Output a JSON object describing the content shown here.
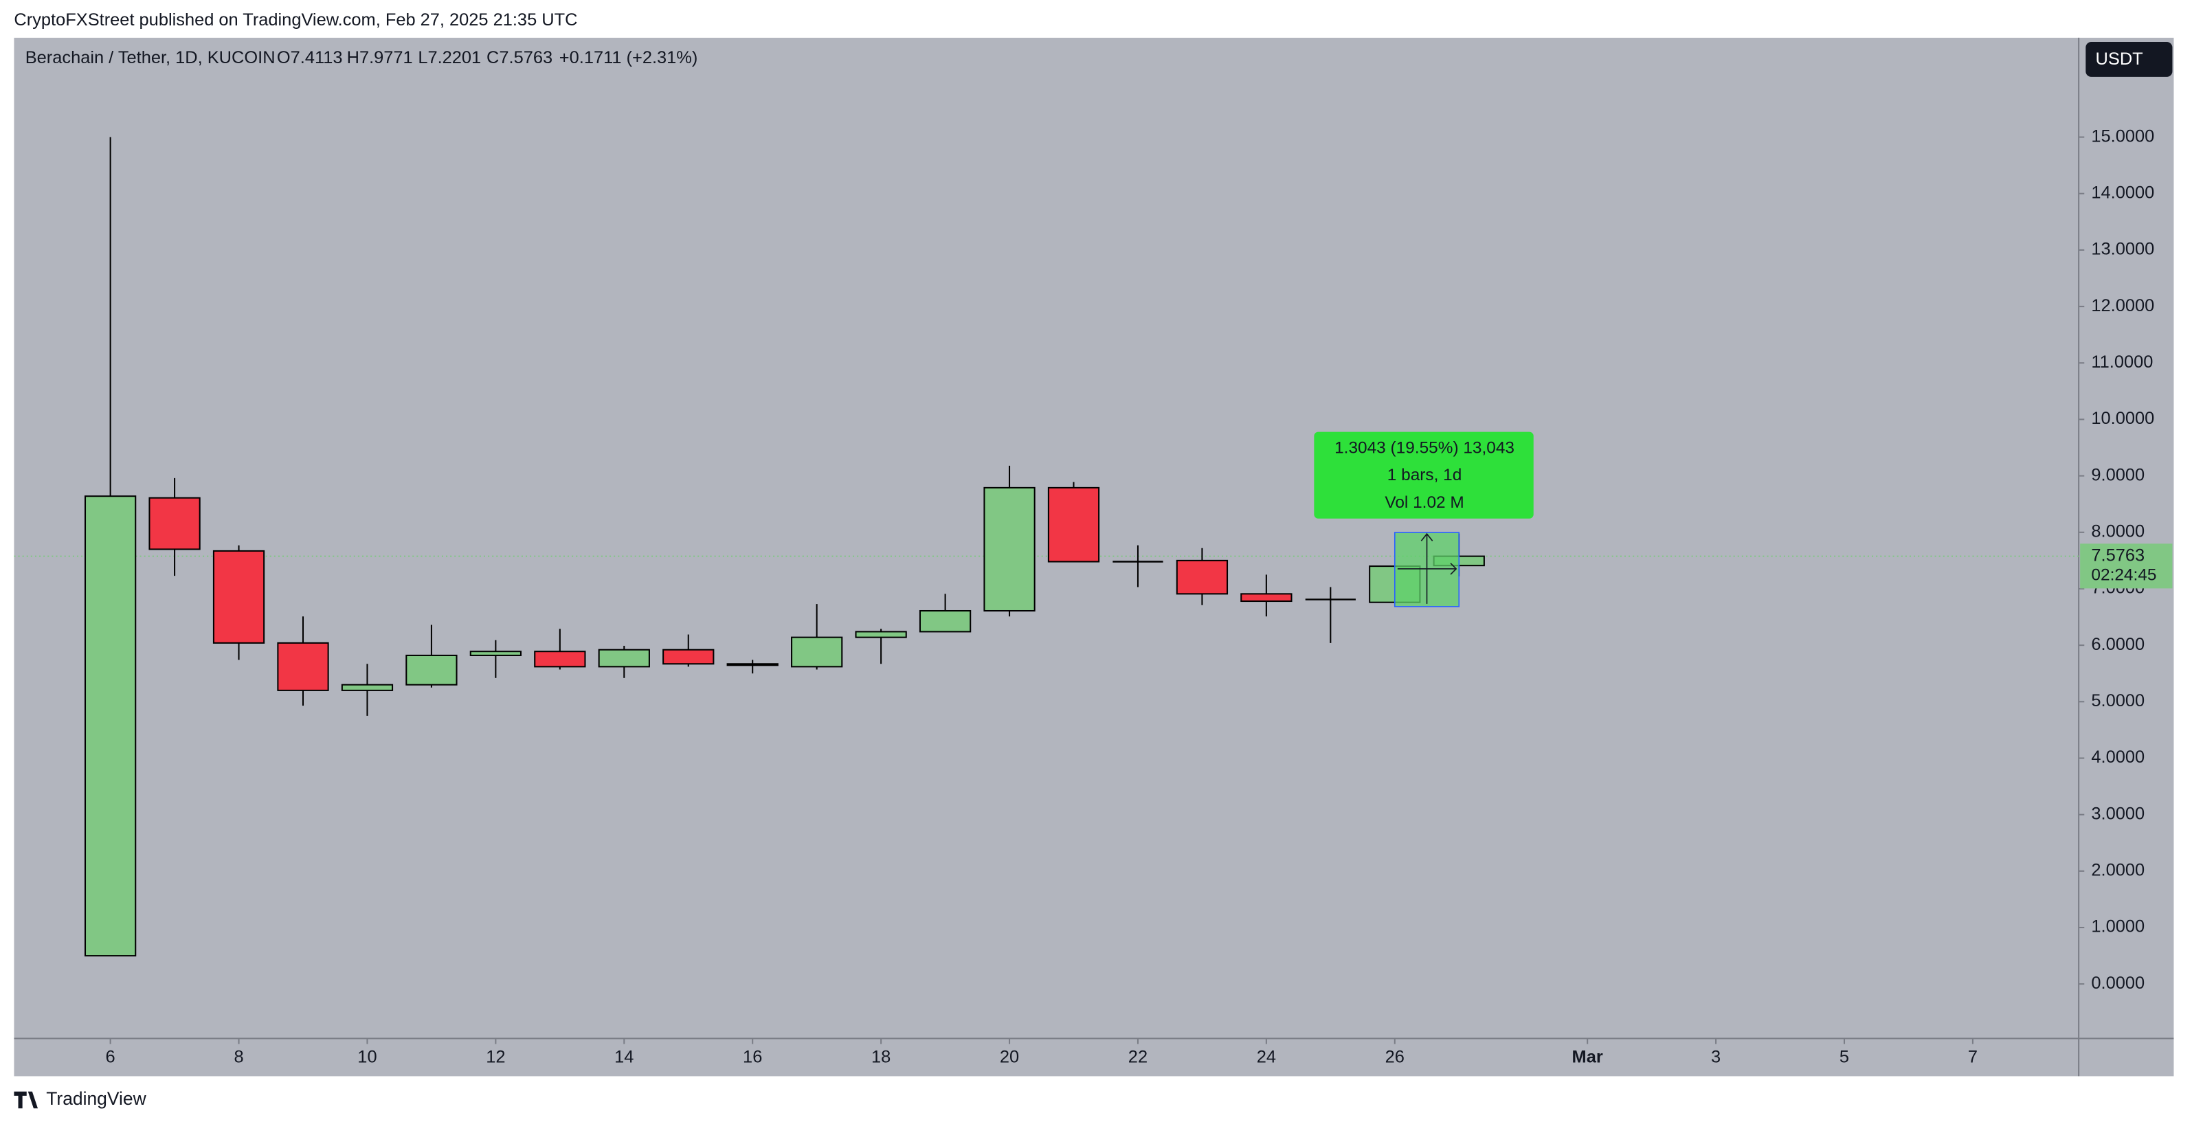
{
  "header": {
    "caption": "CryptoFXStreet published on TradingView.com, Feb 27, 2025 21:35 UTC"
  },
  "legend": {
    "symbol": "Berachain / Tether, 1D, KUCOIN",
    "open": "O7.4113",
    "high": "H7.9771",
    "low": "L7.2201",
    "close": "C7.5763",
    "change": "+0.1711 (+2.31%)"
  },
  "footer": {
    "brand": "TradingView"
  },
  "chart_data": {
    "type": "candlestick",
    "x": [
      0,
      1,
      2,
      3,
      4,
      5,
      6,
      7,
      8,
      9,
      10,
      11,
      12,
      13,
      14,
      15,
      16,
      17,
      18,
      19,
      20,
      21
    ],
    "open": [
      0.5,
      8.61,
      7.67,
      6.04,
      5.2,
      5.3,
      5.82,
      5.89,
      5.62,
      5.92,
      5.65,
      5.62,
      6.14,
      6.24,
      6.61,
      8.79,
      7.48,
      7.5,
      6.91,
      6.81,
      6.76,
      7.4113
    ],
    "high": [
      15.0,
      8.96,
      7.77,
      6.51,
      5.67,
      6.36,
      6.09,
      6.29,
      5.99,
      6.19,
      5.74,
      6.73,
      6.29,
      6.91,
      9.18,
      8.89,
      7.77,
      7.72,
      7.25,
      7.03,
      7.4,
      7.9771
    ],
    "low": [
      0.5,
      7.23,
      5.74,
      4.93,
      4.75,
      5.25,
      5.42,
      5.57,
      5.42,
      5.62,
      5.5,
      5.57,
      5.67,
      6.24,
      6.51,
      7.48,
      7.03,
      6.71,
      6.51,
      6.04,
      6.76,
      7.2201
    ],
    "close": [
      8.64,
      7.7,
      6.04,
      5.2,
      5.3,
      5.82,
      5.89,
      5.62,
      5.92,
      5.67,
      5.67,
      6.14,
      6.24,
      6.61,
      8.79,
      7.48,
      7.48,
      6.91,
      6.78,
      6.81,
      7.4,
      7.5763
    ],
    "up_color": "#81c784",
    "down_color": "#f23645",
    "doji_color": "#000000",
    "background": "#b2b5be",
    "ylim": [
      -0.965,
      16.76
    ],
    "yticks": [
      {
        "value": 0,
        "label": "0.0000"
      },
      {
        "value": 1,
        "label": "1.0000"
      },
      {
        "value": 2,
        "label": "2.0000"
      },
      {
        "value": 3,
        "label": "3.0000"
      },
      {
        "value": 4,
        "label": "4.0000"
      },
      {
        "value": 5,
        "label": "5.0000"
      },
      {
        "value": 6,
        "label": "6.0000"
      },
      {
        "value": 7,
        "label": "7.0000"
      },
      {
        "value": 8,
        "label": "8.0000"
      },
      {
        "value": 9,
        "label": "9.0000"
      },
      {
        "value": 10,
        "label": "10.0000"
      },
      {
        "value": 11,
        "label": "11.0000"
      },
      {
        "value": 12,
        "label": "12.0000"
      },
      {
        "value": 13,
        "label": "13.0000"
      },
      {
        "value": 14,
        "label": "14.0000"
      },
      {
        "value": 15,
        "label": "15.0000"
      }
    ],
    "xlim": [
      -1.5,
      30.65
    ],
    "xticks": [
      {
        "value": 0,
        "label": "6"
      },
      {
        "value": 2,
        "label": "8"
      },
      {
        "value": 4,
        "label": "10"
      },
      {
        "value": 6,
        "label": "12"
      },
      {
        "value": 8,
        "label": "14"
      },
      {
        "value": 10,
        "label": "16"
      },
      {
        "value": 12,
        "label": "18"
      },
      {
        "value": 14,
        "label": "20"
      },
      {
        "value": 16,
        "label": "22"
      },
      {
        "value": 18,
        "label": "24"
      },
      {
        "value": 20,
        "label": "26"
      },
      {
        "value": 23,
        "label": "Mar"
      },
      {
        "value": 25,
        "label": "3"
      },
      {
        "value": 27,
        "label": "5"
      },
      {
        "value": 29,
        "label": "7"
      }
    ],
    "last_price": {
      "value": 7.5763,
      "label": "7.5763"
    },
    "countdown": "02:24:45",
    "currency": "USDT",
    "measure": {
      "lines": [
        "1.3043 (19.55%) 13,043",
        "1 bars, 1d",
        "Vol 1.02 M"
      ]
    }
  }
}
